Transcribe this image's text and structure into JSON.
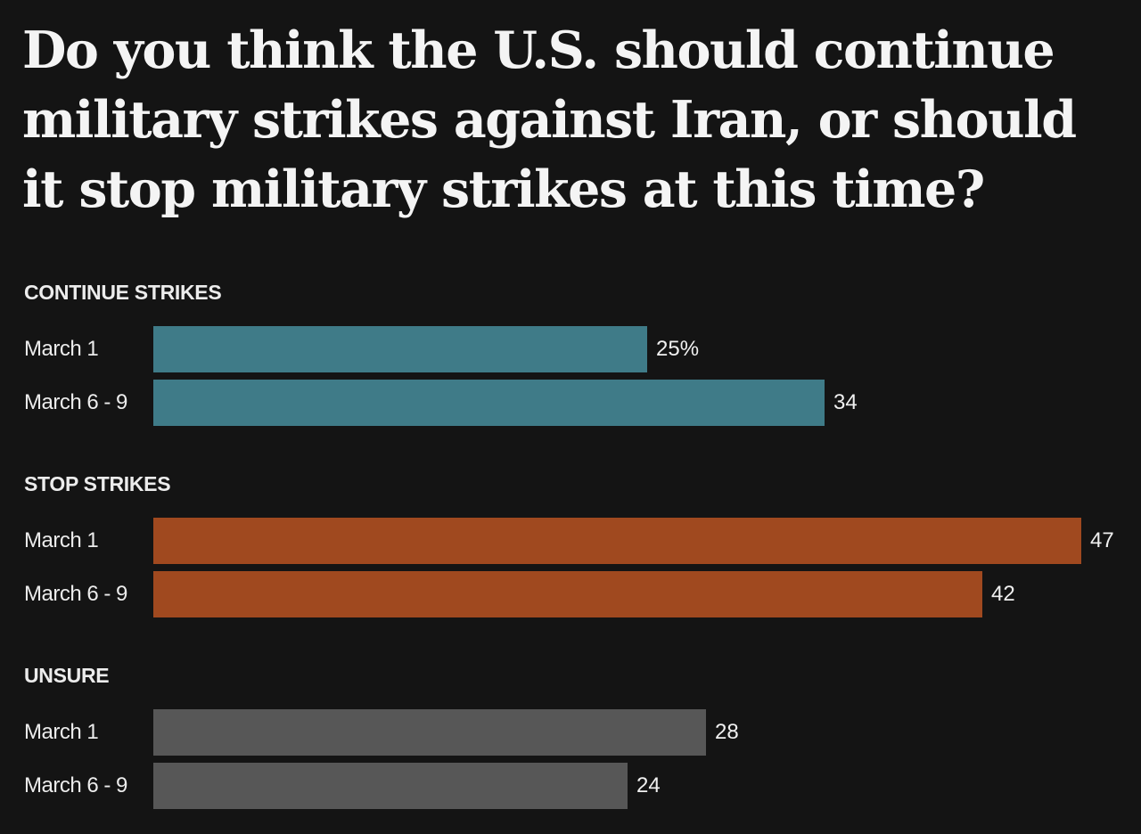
{
  "chart_data": {
    "type": "bar",
    "orientation": "horizontal",
    "title": "Do you think the U.S. should continue military strikes against Iran, or should it stop military strikes at this time?",
    "categories": [
      "March 1",
      "March 6 - 9"
    ],
    "value_suffix_first": "%",
    "xlim": [
      0,
      47
    ],
    "series": [
      {
        "name": "CONTINUE STRIKES",
        "key": "continue",
        "color": "#3f7b88",
        "values": [
          25,
          34
        ]
      },
      {
        "name": "STOP STRIKES",
        "key": "stop",
        "color": "#a0491f",
        "values": [
          47,
          42
        ]
      },
      {
        "name": "UNSURE",
        "key": "unsure",
        "color": "#575757",
        "values": [
          28,
          24
        ]
      }
    ]
  }
}
